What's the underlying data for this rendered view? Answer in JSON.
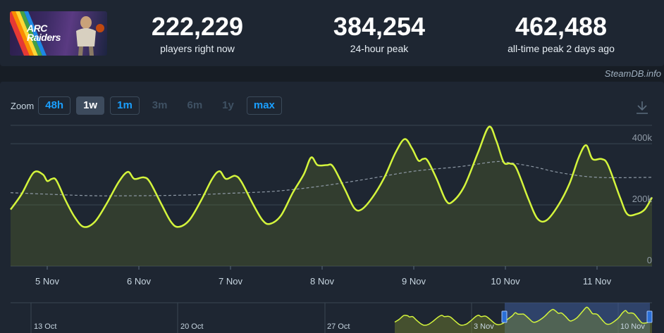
{
  "game": {
    "capsule_text": "ARC Raiders"
  },
  "stats": [
    {
      "value": "222,229",
      "label": "players right now"
    },
    {
      "value": "384,254",
      "label": "24-hour peak"
    },
    {
      "value": "462,488",
      "label": "all-time peak 2 days ago"
    }
  ],
  "watermark": "SteamDB.info",
  "zoom": {
    "label": "Zoom",
    "buttons": [
      {
        "label": "48h",
        "state": "linked"
      },
      {
        "label": "1w",
        "state": "active"
      },
      {
        "label": "1m",
        "state": "linked"
      },
      {
        "label": "3m",
        "state": "disabled"
      },
      {
        "label": "6m",
        "state": "disabled"
      },
      {
        "label": "1y",
        "state": "disabled"
      },
      {
        "label": "max",
        "state": "linked"
      }
    ]
  },
  "icons": {
    "download": "download-icon"
  },
  "colors": {
    "line": "#d4f53c",
    "average": "#8f9aa6",
    "grid": "#3a4652",
    "navigator_selection": "#3e5b99"
  },
  "chart_data": {
    "type": "line",
    "title": "",
    "xlabel": "",
    "ylabel": "",
    "x_range": [
      4.6,
      11.6
    ],
    "ylim": [
      0,
      460000
    ],
    "y_ticks": [
      {
        "value": 0,
        "label": "0"
      },
      {
        "value": 200000,
        "label": "200k"
      },
      {
        "value": 400000,
        "label": "400k"
      }
    ],
    "x_ticks": [
      {
        "value": 5,
        "label": "5 Nov"
      },
      {
        "value": 6,
        "label": "6 Nov"
      },
      {
        "value": 7,
        "label": "7 Nov"
      },
      {
        "value": 8,
        "label": "8 Nov"
      },
      {
        "value": 9,
        "label": "9 Nov"
      },
      {
        "value": 10,
        "label": "10 Nov"
      },
      {
        "value": 11,
        "label": "11 Nov"
      }
    ],
    "grid": true,
    "legend": "none",
    "series": [
      {
        "style": "solid",
        "points": [
          [
            4.6,
            185000
          ],
          [
            4.72,
            235000
          ],
          [
            4.85,
            305000
          ],
          [
            4.95,
            300000
          ],
          [
            5.0,
            278000
          ],
          [
            5.05,
            285000
          ],
          [
            5.1,
            280000
          ],
          [
            5.2,
            215000
          ],
          [
            5.3,
            160000
          ],
          [
            5.4,
            128000
          ],
          [
            5.52,
            145000
          ],
          [
            5.65,
            205000
          ],
          [
            5.78,
            275000
          ],
          [
            5.88,
            308000
          ],
          [
            5.95,
            285000
          ],
          [
            6.05,
            290000
          ],
          [
            6.12,
            275000
          ],
          [
            6.25,
            200000
          ],
          [
            6.35,
            145000
          ],
          [
            6.43,
            128000
          ],
          [
            6.55,
            150000
          ],
          [
            6.68,
            215000
          ],
          [
            6.8,
            285000
          ],
          [
            6.88,
            310000
          ],
          [
            6.95,
            285000
          ],
          [
            7.05,
            295000
          ],
          [
            7.12,
            275000
          ],
          [
            7.25,
            200000
          ],
          [
            7.35,
            150000
          ],
          [
            7.43,
            138000
          ],
          [
            7.55,
            165000
          ],
          [
            7.68,
            240000
          ],
          [
            7.8,
            300000
          ],
          [
            7.88,
            355000
          ],
          [
            7.95,
            330000
          ],
          [
            8.05,
            330000
          ],
          [
            8.12,
            325000
          ],
          [
            8.25,
            250000
          ],
          [
            8.35,
            190000
          ],
          [
            8.43,
            185000
          ],
          [
            8.55,
            225000
          ],
          [
            8.68,
            290000
          ],
          [
            8.8,
            370000
          ],
          [
            8.9,
            415000
          ],
          [
            8.98,
            385000
          ],
          [
            9.05,
            345000
          ],
          [
            9.1,
            350000
          ],
          [
            9.15,
            345000
          ],
          [
            9.25,
            285000
          ],
          [
            9.35,
            215000
          ],
          [
            9.42,
            210000
          ],
          [
            9.55,
            260000
          ],
          [
            9.7,
            370000
          ],
          [
            9.82,
            455000
          ],
          [
            9.9,
            410000
          ],
          [
            9.98,
            340000
          ],
          [
            10.05,
            335000
          ],
          [
            10.12,
            320000
          ],
          [
            10.25,
            220000
          ],
          [
            10.35,
            155000
          ],
          [
            10.45,
            150000
          ],
          [
            10.58,
            200000
          ],
          [
            10.7,
            270000
          ],
          [
            10.8,
            355000
          ],
          [
            10.88,
            395000
          ],
          [
            10.95,
            350000
          ],
          [
            11.05,
            350000
          ],
          [
            11.12,
            330000
          ],
          [
            11.25,
            225000
          ],
          [
            11.33,
            170000
          ],
          [
            11.43,
            170000
          ],
          [
            11.52,
            185000
          ],
          [
            11.6,
            225000
          ]
        ]
      },
      {
        "style": "dashed",
        "points": [
          [
            4.6,
            240000
          ],
          [
            5.0,
            235000
          ],
          [
            5.5,
            230000
          ],
          [
            6.0,
            230000
          ],
          [
            6.5,
            232000
          ],
          [
            7.0,
            238000
          ],
          [
            7.5,
            245000
          ],
          [
            8.0,
            262000
          ],
          [
            8.5,
            285000
          ],
          [
            9.0,
            310000
          ],
          [
            9.5,
            325000
          ],
          [
            9.85,
            340000
          ],
          [
            10.0,
            340000
          ],
          [
            10.3,
            325000
          ],
          [
            10.6,
            305000
          ],
          [
            11.0,
            290000
          ],
          [
            11.6,
            290000
          ]
        ]
      }
    ]
  },
  "navigator": {
    "labels": [
      "13 Oct",
      "20 Oct",
      "27 Oct",
      "3 Nov",
      "10 Nov"
    ],
    "selection": [
      "Nov 4",
      "Nov 11"
    ]
  }
}
